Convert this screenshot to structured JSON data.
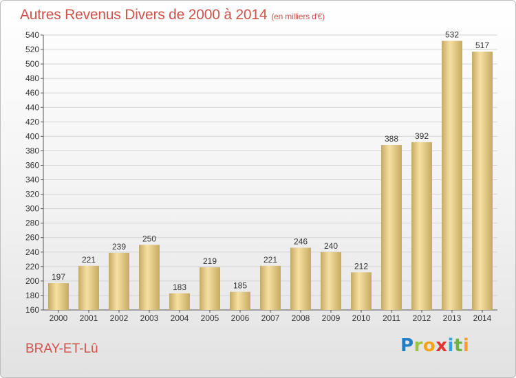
{
  "title": "Autres Revenus Divers de 2000 à 2014",
  "unit": "(en milliers d'€)",
  "place": "BRAY-ET-Lû",
  "logo": "Proxiti",
  "colors": {
    "title": "#d0524a",
    "bar_light": "#f6e0a2",
    "bar_dark": "#c6aa62",
    "grid": "#d4d4d4"
  },
  "chart_data": {
    "type": "bar",
    "categories": [
      "2000",
      "2001",
      "2002",
      "2003",
      "2004",
      "2005",
      "2006",
      "2007",
      "2008",
      "2009",
      "2010",
      "2011",
      "2012",
      "2013",
      "2014"
    ],
    "values": [
      197,
      221,
      239,
      250,
      183,
      219,
      185,
      221,
      246,
      240,
      212,
      388,
      392,
      532,
      517
    ],
    "title": "Autres Revenus Divers de 2000 à 2014",
    "unit": "(en milliers d'€)",
    "ylim": [
      160,
      540
    ],
    "ytick_step": 20,
    "grid": true,
    "legend": "none"
  }
}
